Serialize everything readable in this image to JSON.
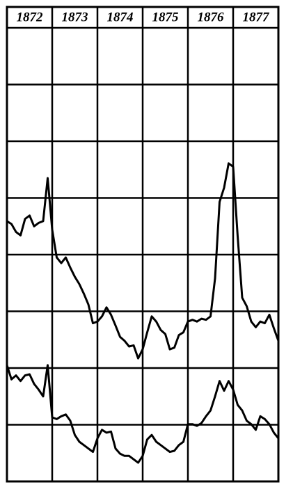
{
  "chart_data": {
    "type": "line",
    "x": [
      1872.0,
      1872.1,
      1872.2,
      1872.3,
      1872.4,
      1872.5,
      1872.6,
      1872.7,
      1872.8,
      1872.9,
      1873.0,
      1873.1,
      1873.2,
      1873.3,
      1873.4,
      1873.5,
      1873.6,
      1873.7,
      1873.8,
      1873.9,
      1874.0,
      1874.1,
      1874.2,
      1874.3,
      1874.4,
      1874.5,
      1874.6,
      1874.7,
      1874.8,
      1874.9,
      1875.0,
      1875.1,
      1875.2,
      1875.3,
      1875.4,
      1875.5,
      1875.6,
      1875.7,
      1875.8,
      1875.9,
      1876.0,
      1876.1,
      1876.2,
      1876.3,
      1876.4,
      1876.5,
      1876.6,
      1876.7,
      1876.8,
      1876.9,
      1877.0,
      1877.1,
      1877.2,
      1877.3,
      1877.4,
      1877.5,
      1877.6,
      1877.7,
      1877.8,
      1877.9,
      1878.0
    ],
    "series": [
      {
        "color": "#000000",
        "values": [
          4.59,
          4.54,
          4.4,
          4.34,
          4.63,
          4.69,
          4.5,
          4.56,
          4.59,
          5.35,
          4.44,
          3.95,
          3.85,
          3.95,
          3.77,
          3.61,
          3.48,
          3.31,
          3.12,
          2.79,
          2.82,
          2.91,
          3.07,
          2.94,
          2.75,
          2.55,
          2.48,
          2.38,
          2.4,
          2.17,
          2.33,
          2.63,
          2.91,
          2.82,
          2.67,
          2.6,
          2.33,
          2.36,
          2.58,
          2.63,
          2.82,
          2.85,
          2.82,
          2.87,
          2.85,
          2.91,
          3.58,
          4.93,
          5.18,
          5.61,
          5.55,
          4.32,
          3.24,
          3.09,
          2.82,
          2.72,
          2.82,
          2.79,
          2.94,
          2.7,
          2.48
        ]
      },
      {
        "color": "#000000",
        "values": [
          2.05,
          1.8,
          1.87,
          1.77,
          1.87,
          1.89,
          1.72,
          1.62,
          1.5,
          2.05,
          1.13,
          1.1,
          1.15,
          1.18,
          1.07,
          0.82,
          0.7,
          0.64,
          0.58,
          0.52,
          0.76,
          0.91,
          0.86,
          0.88,
          0.58,
          0.49,
          0.45,
          0.45,
          0.39,
          0.33,
          0.45,
          0.74,
          0.82,
          0.7,
          0.64,
          0.58,
          0.52,
          0.54,
          0.64,
          0.7,
          1.01,
          1.01,
          0.98,
          1.03,
          1.15,
          1.25,
          1.5,
          1.77,
          1.6,
          1.77,
          1.62,
          1.35,
          1.25,
          1.07,
          1.01,
          0.91,
          1.15,
          1.1,
          1.01,
          0.86,
          0.76
        ]
      }
    ],
    "xlim": [
      1872,
      1878
    ],
    "xticks": [
      1872,
      1873,
      1874,
      1875,
      1876,
      1877
    ],
    "ylim": [
      0,
      8
    ],
    "yticks": [
      0,
      1,
      2,
      3,
      4,
      5,
      6,
      7,
      8
    ],
    "grid": true
  }
}
